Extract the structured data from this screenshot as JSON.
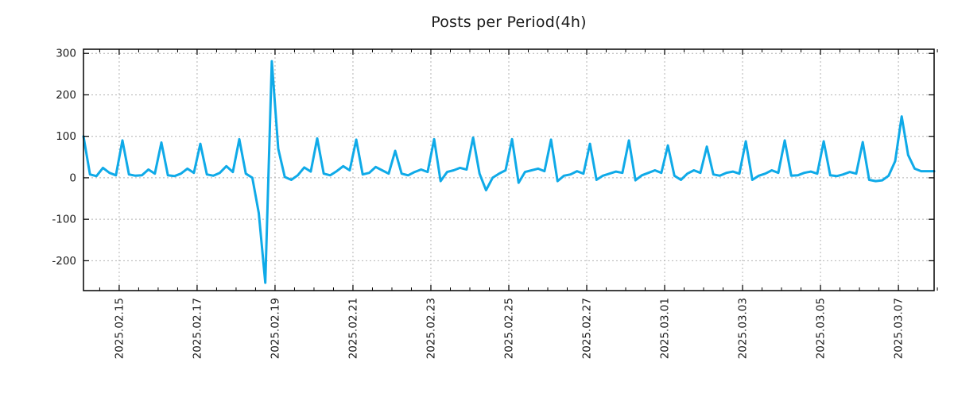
{
  "page": {
    "background": "#ffffff"
  },
  "chart_data": {
    "type": "line",
    "title": "Posts per Period(4h)",
    "period": "4h",
    "start_time": "2025-02-14 02:00",
    "interval_hours": 4,
    "values": [
      100,
      8,
      4,
      24,
      12,
      6,
      90,
      8,
      5,
      6,
      20,
      10,
      85,
      6,
      4,
      10,
      22,
      12,
      82,
      8,
      5,
      12,
      28,
      14,
      93,
      10,
      0,
      -85,
      -253,
      281,
      70,
      2,
      -5,
      6,
      25,
      15,
      95,
      10,
      6,
      16,
      28,
      18,
      92,
      8,
      12,
      26,
      18,
      10,
      65,
      10,
      6,
      14,
      20,
      14,
      93,
      -8,
      14,
      18,
      24,
      20,
      97,
      10,
      -30,
      0,
      10,
      18,
      93,
      -12,
      14,
      18,
      22,
      16,
      92,
      -8,
      5,
      8,
      16,
      10,
      82,
      -5,
      5,
      10,
      15,
      12,
      90,
      -6,
      6,
      12,
      18,
      12,
      78,
      5,
      -5,
      10,
      18,
      12,
      75,
      8,
      5,
      12,
      15,
      10,
      88,
      -5,
      5,
      10,
      18,
      12,
      90,
      5,
      6,
      12,
      15,
      10,
      88,
      6,
      4,
      8,
      14,
      10,
      86,
      -5,
      -8,
      -6,
      5,
      40,
      148,
      55,
      22,
      16,
      16,
      16
    ],
    "ylim": [
      -272,
      310
    ],
    "y_ticks": [
      {
        "value": 300,
        "label": "300"
      },
      {
        "value": 200,
        "label": "200"
      },
      {
        "value": 100,
        "label": "100"
      },
      {
        "value": 0,
        "label": "0"
      },
      {
        "value": -100,
        "label": "-100"
      },
      {
        "value": -200,
        "label": "-200"
      }
    ],
    "x_ticks": [
      {
        "index": 5.5,
        "label": "2025.02.15"
      },
      {
        "index": 17.5,
        "label": "2025.02.17"
      },
      {
        "index": 29.5,
        "label": "2025.02.19"
      },
      {
        "index": 41.5,
        "label": "2025.02.21"
      },
      {
        "index": 53.5,
        "label": "2025.02.23"
      },
      {
        "index": 65.5,
        "label": "2025.02.25"
      },
      {
        "index": 77.5,
        "label": "2025.02.27"
      },
      {
        "index": 89.5,
        "label": "2025.03.01"
      },
      {
        "index": 101.5,
        "label": "2025.03.03"
      },
      {
        "index": 113.5,
        "label": "2025.03.05"
      },
      {
        "index": 125.5,
        "label": "2025.03.07"
      }
    ],
    "x_minor_tick_start_index": 2.5,
    "x_minor_tick_step": 3,
    "grid": "dashed",
    "legend_position": "none",
    "colors": {
      "series_line": "#0faae8",
      "grid_line": "#b3b3b3",
      "axis_border": "#000000",
      "tick_text": "#1a1a1a"
    }
  }
}
